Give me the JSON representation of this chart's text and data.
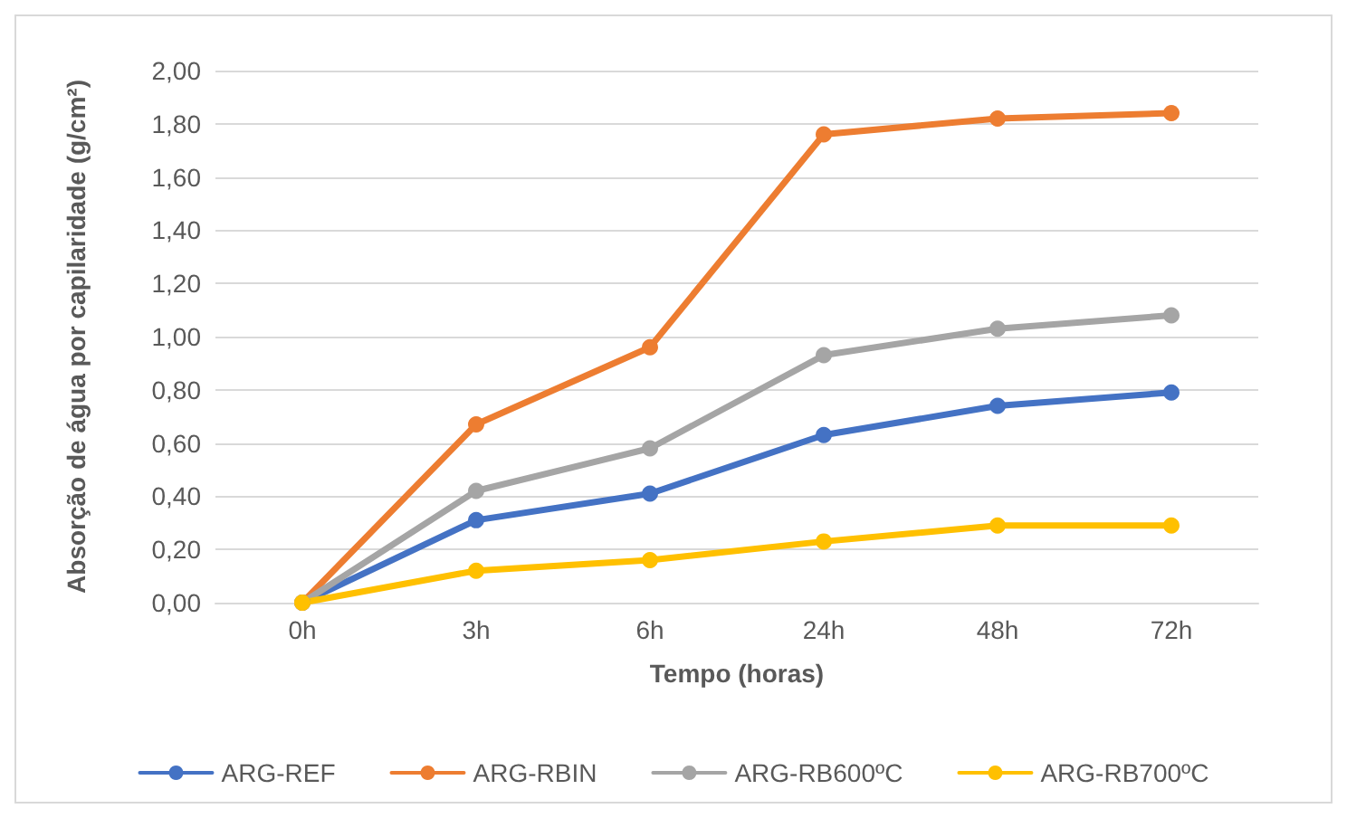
{
  "chart_data": {
    "type": "line",
    "xlabel": "Tempo (horas)",
    "ylabel": "Absorção de água por capilaridade (g/cm²)",
    "categories": [
      "0h",
      "3h",
      "6h",
      "24h",
      "48h",
      "72h"
    ],
    "series": [
      {
        "name": "ARG-REF",
        "color": "#4472c4",
        "values": [
          0,
          0.31,
          0.41,
          0.63,
          0.74,
          0.79
        ]
      },
      {
        "name": "ARG-RBIN",
        "color": "#ed7d31",
        "values": [
          0,
          0.67,
          0.96,
          1.76,
          1.82,
          1.84
        ]
      },
      {
        "name": "ARG-RB600ºC",
        "color": "#a5a5a5",
        "values": [
          0,
          0.42,
          0.58,
          0.93,
          1.03,
          1.08
        ]
      },
      {
        "name": "ARG-RB700ºC",
        "color": "#ffc000",
        "values": [
          0,
          0.12,
          0.16,
          0.23,
          0.29,
          0.29
        ]
      }
    ],
    "ylim": [
      0,
      2
    ],
    "yticks": [
      {
        "value": 0,
        "label": "0,00"
      },
      {
        "value": 0.2,
        "label": "0,20"
      },
      {
        "value": 0.4,
        "label": "0,40"
      },
      {
        "value": 0.6,
        "label": "0,60"
      },
      {
        "value": 0.8,
        "label": "0,80"
      },
      {
        "value": 1,
        "label": "1,00"
      },
      {
        "value": 1.2,
        "label": "1,20"
      },
      {
        "value": 1.4,
        "label": "1,40"
      },
      {
        "value": 1.6,
        "label": "1,60"
      },
      {
        "value": 1.8,
        "label": "1,80"
      },
      {
        "value": 2,
        "label": "2,00"
      }
    ],
    "grid": "y",
    "legend": "bottom",
    "marker": "circle",
    "line_style": "solid"
  }
}
